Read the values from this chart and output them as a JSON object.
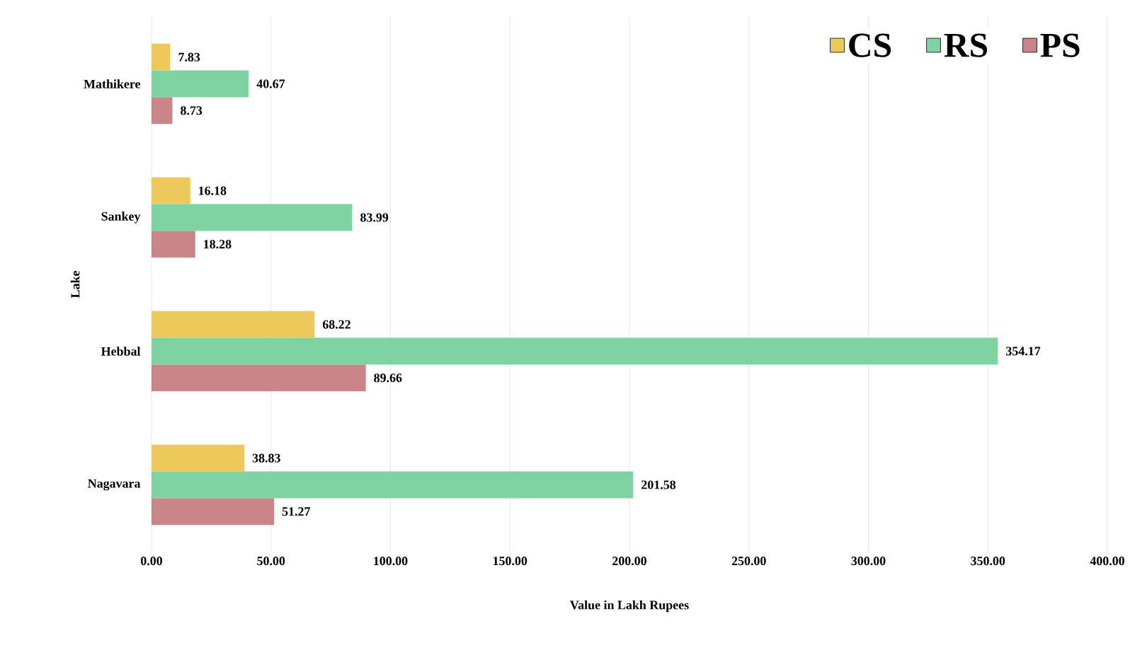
{
  "chart_data": {
    "type": "bar",
    "orientation": "horizontal",
    "xlabel": "Value in Lakh Rupees",
    "ylabel": "Lake",
    "categories": [
      "Mathikere",
      "Sankey",
      "Hebbal",
      "Nagavara"
    ],
    "series": [
      {
        "name": "CS",
        "color": "#ecc95a",
        "values": [
          7.83,
          16.18,
          68.22,
          38.83
        ]
      },
      {
        "name": "RS",
        "color": "#7fd3a3",
        "values": [
          40.67,
          83.99,
          354.17,
          201.58
        ]
      },
      {
        "name": "PS",
        "color": "#c98587",
        "values": [
          8.73,
          18.28,
          89.66,
          51.27
        ]
      }
    ],
    "xlim": [
      0,
      400
    ],
    "xticks": [
      {
        "value": 0,
        "label": "0.00"
      },
      {
        "value": 50,
        "label": "50.00"
      },
      {
        "value": 100,
        "label": "100.00"
      },
      {
        "value": 150,
        "label": "150.00"
      },
      {
        "value": 200,
        "label": "200.00"
      },
      {
        "value": 250,
        "label": "250.00"
      },
      {
        "value": 300,
        "label": "300.00"
      },
      {
        "value": 350,
        "label": "350.00"
      },
      {
        "value": 400,
        "label": "400.00"
      }
    ],
    "grid": "x",
    "legend": "top right",
    "data_labels": true
  }
}
